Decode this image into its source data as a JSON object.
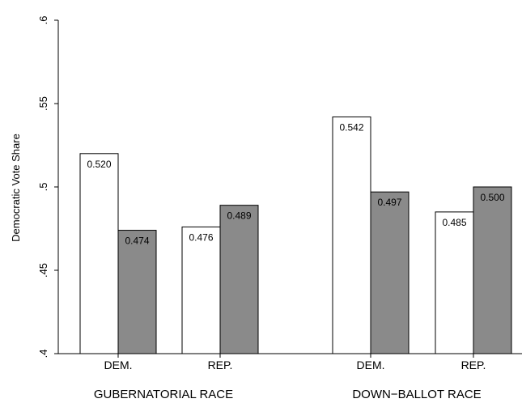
{
  "chart_data": {
    "type": "bar",
    "ylabel": "Democratic Vote Share",
    "ylim": [
      0.4,
      0.6
    ],
    "yticks": [
      {
        "value": 0.4,
        "label": ".4"
      },
      {
        "value": 0.45,
        "label": ".45"
      },
      {
        "value": 0.5,
        "label": ".5"
      },
      {
        "value": 0.55,
        "label": ".55"
      },
      {
        "value": 0.6,
        "label": ".6"
      }
    ],
    "grid": false,
    "legend": "none",
    "colors": {
      "white_bar": "#ffffff",
      "gray_bar": "#8a8a8a",
      "axis": "#000000"
    },
    "groups": [
      {
        "label": "GUBERNATORIAL RACE",
        "categories": [
          {
            "label": "DEM.",
            "bars": [
              {
                "value": 0.52,
                "label": "0.520",
                "fill": "white"
              },
              {
                "value": 0.474,
                "label": "0.474",
                "fill": "gray"
              }
            ]
          },
          {
            "label": "REP.",
            "bars": [
              {
                "value": 0.476,
                "label": "0.476",
                "fill": "white"
              },
              {
                "value": 0.489,
                "label": "0.489",
                "fill": "gray"
              }
            ]
          }
        ]
      },
      {
        "label": "DOWN−BALLOT RACE",
        "categories": [
          {
            "label": "DEM.",
            "bars": [
              {
                "value": 0.542,
                "label": "0.542",
                "fill": "white"
              },
              {
                "value": 0.497,
                "label": "0.497",
                "fill": "gray"
              }
            ]
          },
          {
            "label": "REP.",
            "bars": [
              {
                "value": 0.485,
                "label": "0.485",
                "fill": "white"
              },
              {
                "value": 0.5,
                "label": "0.500",
                "fill": "gray"
              }
            ]
          }
        ]
      }
    ]
  }
}
